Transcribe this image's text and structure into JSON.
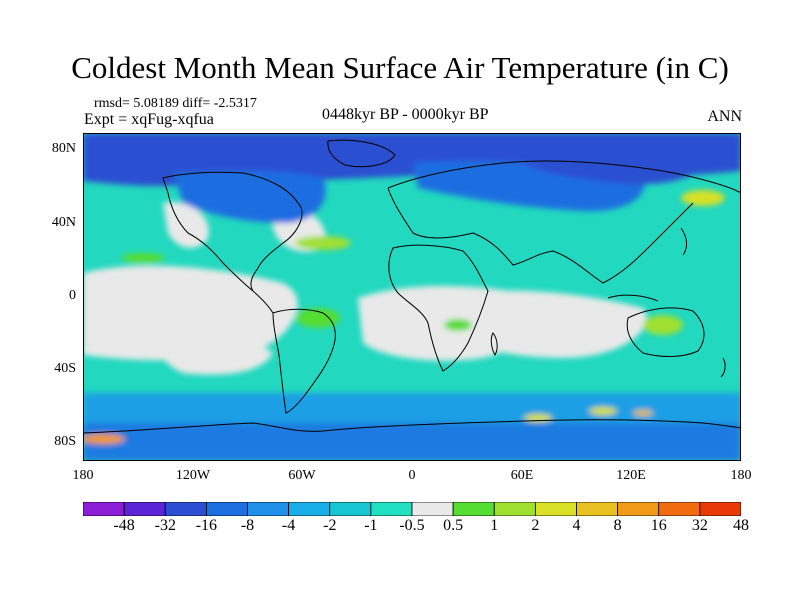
{
  "title": "Coldest Month Mean Surface Air Temperature (in C)",
  "stats": "rmsd= 5.08189 diff= -2.5317",
  "experiment": "Expt = xqFug-xqfua",
  "period": "0448kyr BP - 0000kyr BP",
  "season": "ANN",
  "lat_labels": [
    "80N",
    "40N",
    "0",
    "40S",
    "80S"
  ],
  "lon_labels": [
    "180",
    "120W",
    "60W",
    "0",
    "60E",
    "120E",
    "180"
  ],
  "colorbar": {
    "labels": [
      "-48",
      "-32",
      "-16",
      "-8",
      "-4",
      "-2",
      "-1",
      "-0.5",
      "0.5",
      "1",
      "2",
      "4",
      "8",
      "16",
      "32",
      "48"
    ],
    "colors": [
      "#8c1fd6",
      "#5a24d4",
      "#2b4fd0",
      "#1f6ee0",
      "#1f8fe8",
      "#19aee8",
      "#18c6d2",
      "#22e0c0",
      "#e9e9e9",
      "#55dd33",
      "#a0e030",
      "#d8e028",
      "#e8c020",
      "#f09a18",
      "#f06c10",
      "#e83a08"
    ]
  },
  "colors": {
    "ocean_neutral": "#e9e9e9",
    "ocean_teal": "#22e0c0",
    "coast": "#000000"
  }
}
